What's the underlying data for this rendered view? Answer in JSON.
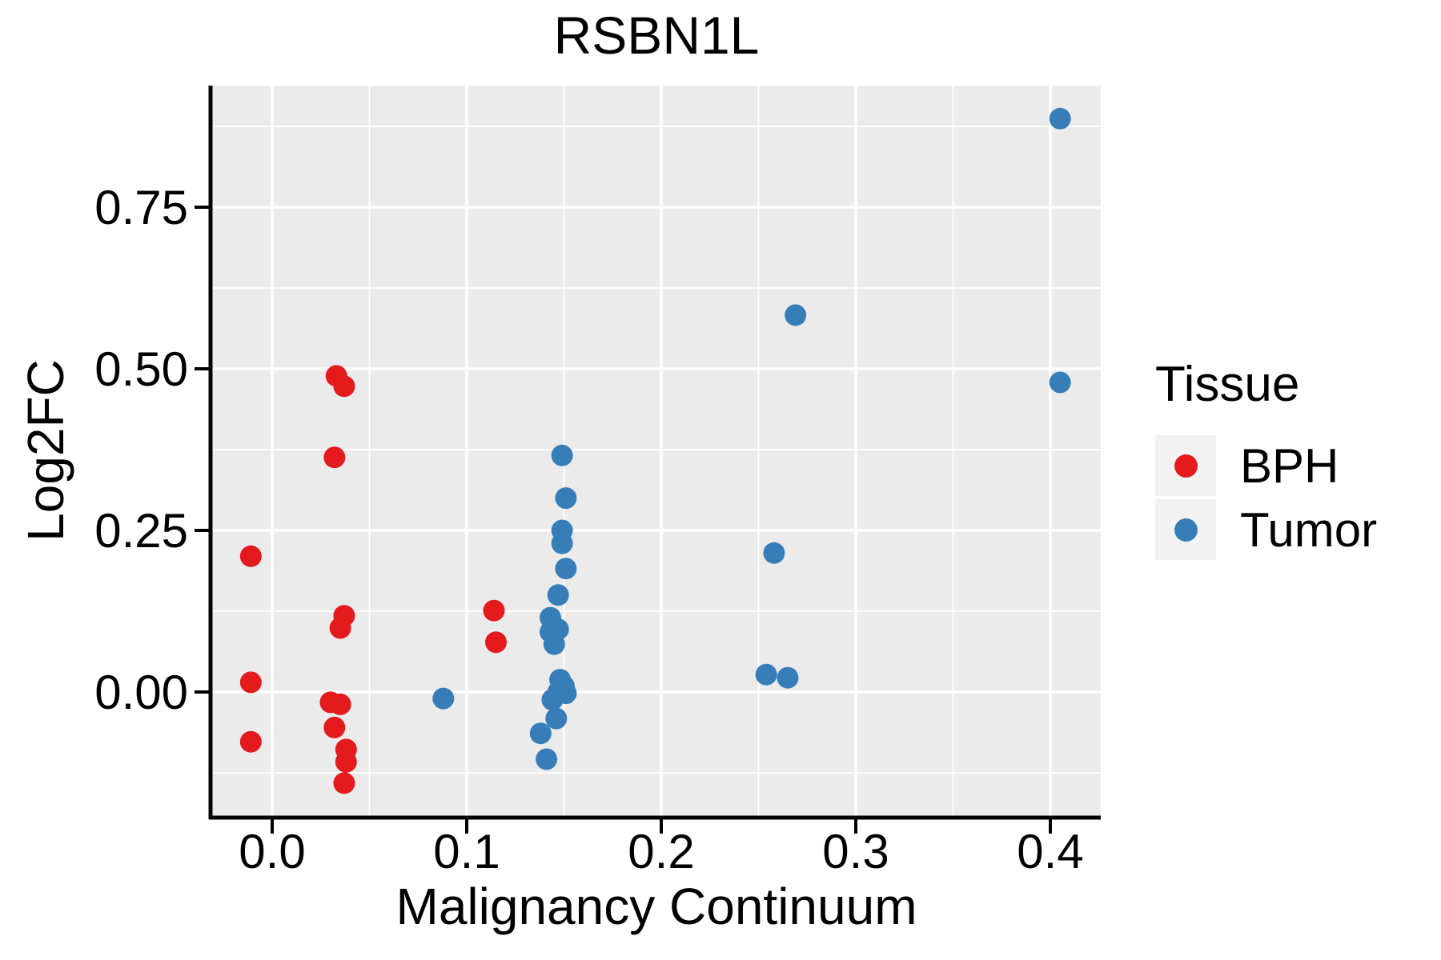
{
  "title": "RSBN1L",
  "axes": {
    "x_label": "Malignancy Continuum",
    "y_label": "Log2FC",
    "x_ticks": [
      {
        "label": "0.0",
        "value": 0.0
      },
      {
        "label": "0.1",
        "value": 0.1
      },
      {
        "label": "0.2",
        "value": 0.2
      },
      {
        "label": "0.3",
        "value": 0.3
      },
      {
        "label": "0.4",
        "value": 0.4
      }
    ],
    "y_ticks": [
      {
        "label": "0.00",
        "value": 0.0
      },
      {
        "label": "0.25",
        "value": 0.25
      },
      {
        "label": "0.50",
        "value": 0.5
      },
      {
        "label": "0.75",
        "value": 0.75
      }
    ],
    "x_minor": [
      0.05,
      0.15,
      0.25,
      0.35
    ],
    "y_minor": [
      -0.125,
      0.125,
      0.375,
      0.625,
      0.875
    ]
  },
  "legend": {
    "title": "Tissue",
    "items": [
      {
        "label": "BPH",
        "color": "#E41A1C"
      },
      {
        "label": "Tumor",
        "color": "#377EB8"
      }
    ]
  },
  "colors": {
    "panel_background": "#EBEBEB",
    "gridline": "#FFFFFF",
    "axis_line": "#000000",
    "legend_key_background": "#F2F2F2",
    "text": "#000000"
  },
  "chart_data": {
    "type": "scatter",
    "title": "RSBN1L",
    "xlabel": "Malignancy Continuum",
    "ylabel": "Log2FC",
    "xlim": [
      -0.031,
      0.426
    ],
    "ylim": [
      -0.192,
      0.938
    ],
    "grid": "on",
    "legend_position": "right",
    "series": [
      {
        "name": "BPH",
        "color": "#E41A1C",
        "points": [
          [
            -0.011,
            0.21
          ],
          [
            -0.011,
            0.015
          ],
          [
            -0.011,
            -0.077
          ],
          [
            0.033,
            0.489
          ],
          [
            0.037,
            0.473
          ],
          [
            0.032,
            0.363
          ],
          [
            0.037,
            0.118
          ],
          [
            0.035,
            0.099
          ],
          [
            0.03,
            -0.016
          ],
          [
            0.035,
            -0.019
          ],
          [
            0.032,
            -0.055
          ],
          [
            0.038,
            -0.089
          ],
          [
            0.038,
            -0.108
          ],
          [
            0.037,
            -0.141
          ],
          [
            0.114,
            0.126
          ],
          [
            0.115,
            0.077
          ]
        ]
      },
      {
        "name": "Tumor",
        "color": "#377EB8",
        "points": [
          [
            0.088,
            -0.01
          ],
          [
            0.149,
            0.366
          ],
          [
            0.151,
            0.3
          ],
          [
            0.149,
            0.25
          ],
          [
            0.149,
            0.23
          ],
          [
            0.151,
            0.191
          ],
          [
            0.147,
            0.15
          ],
          [
            0.143,
            0.115
          ],
          [
            0.147,
            0.097
          ],
          [
            0.143,
            0.093
          ],
          [
            0.145,
            0.074
          ],
          [
            0.148,
            0.019
          ],
          [
            0.15,
            0.009
          ],
          [
            0.147,
            0.0
          ],
          [
            0.151,
            -0.002
          ],
          [
            0.144,
            -0.012
          ],
          [
            0.146,
            -0.041
          ],
          [
            0.138,
            -0.064
          ],
          [
            0.141,
            -0.104
          ],
          [
            0.258,
            0.215
          ],
          [
            0.269,
            0.583
          ],
          [
            0.254,
            0.027
          ],
          [
            0.265,
            0.022
          ],
          [
            0.405,
            0.887
          ],
          [
            0.405,
            0.479
          ]
        ]
      }
    ]
  }
}
